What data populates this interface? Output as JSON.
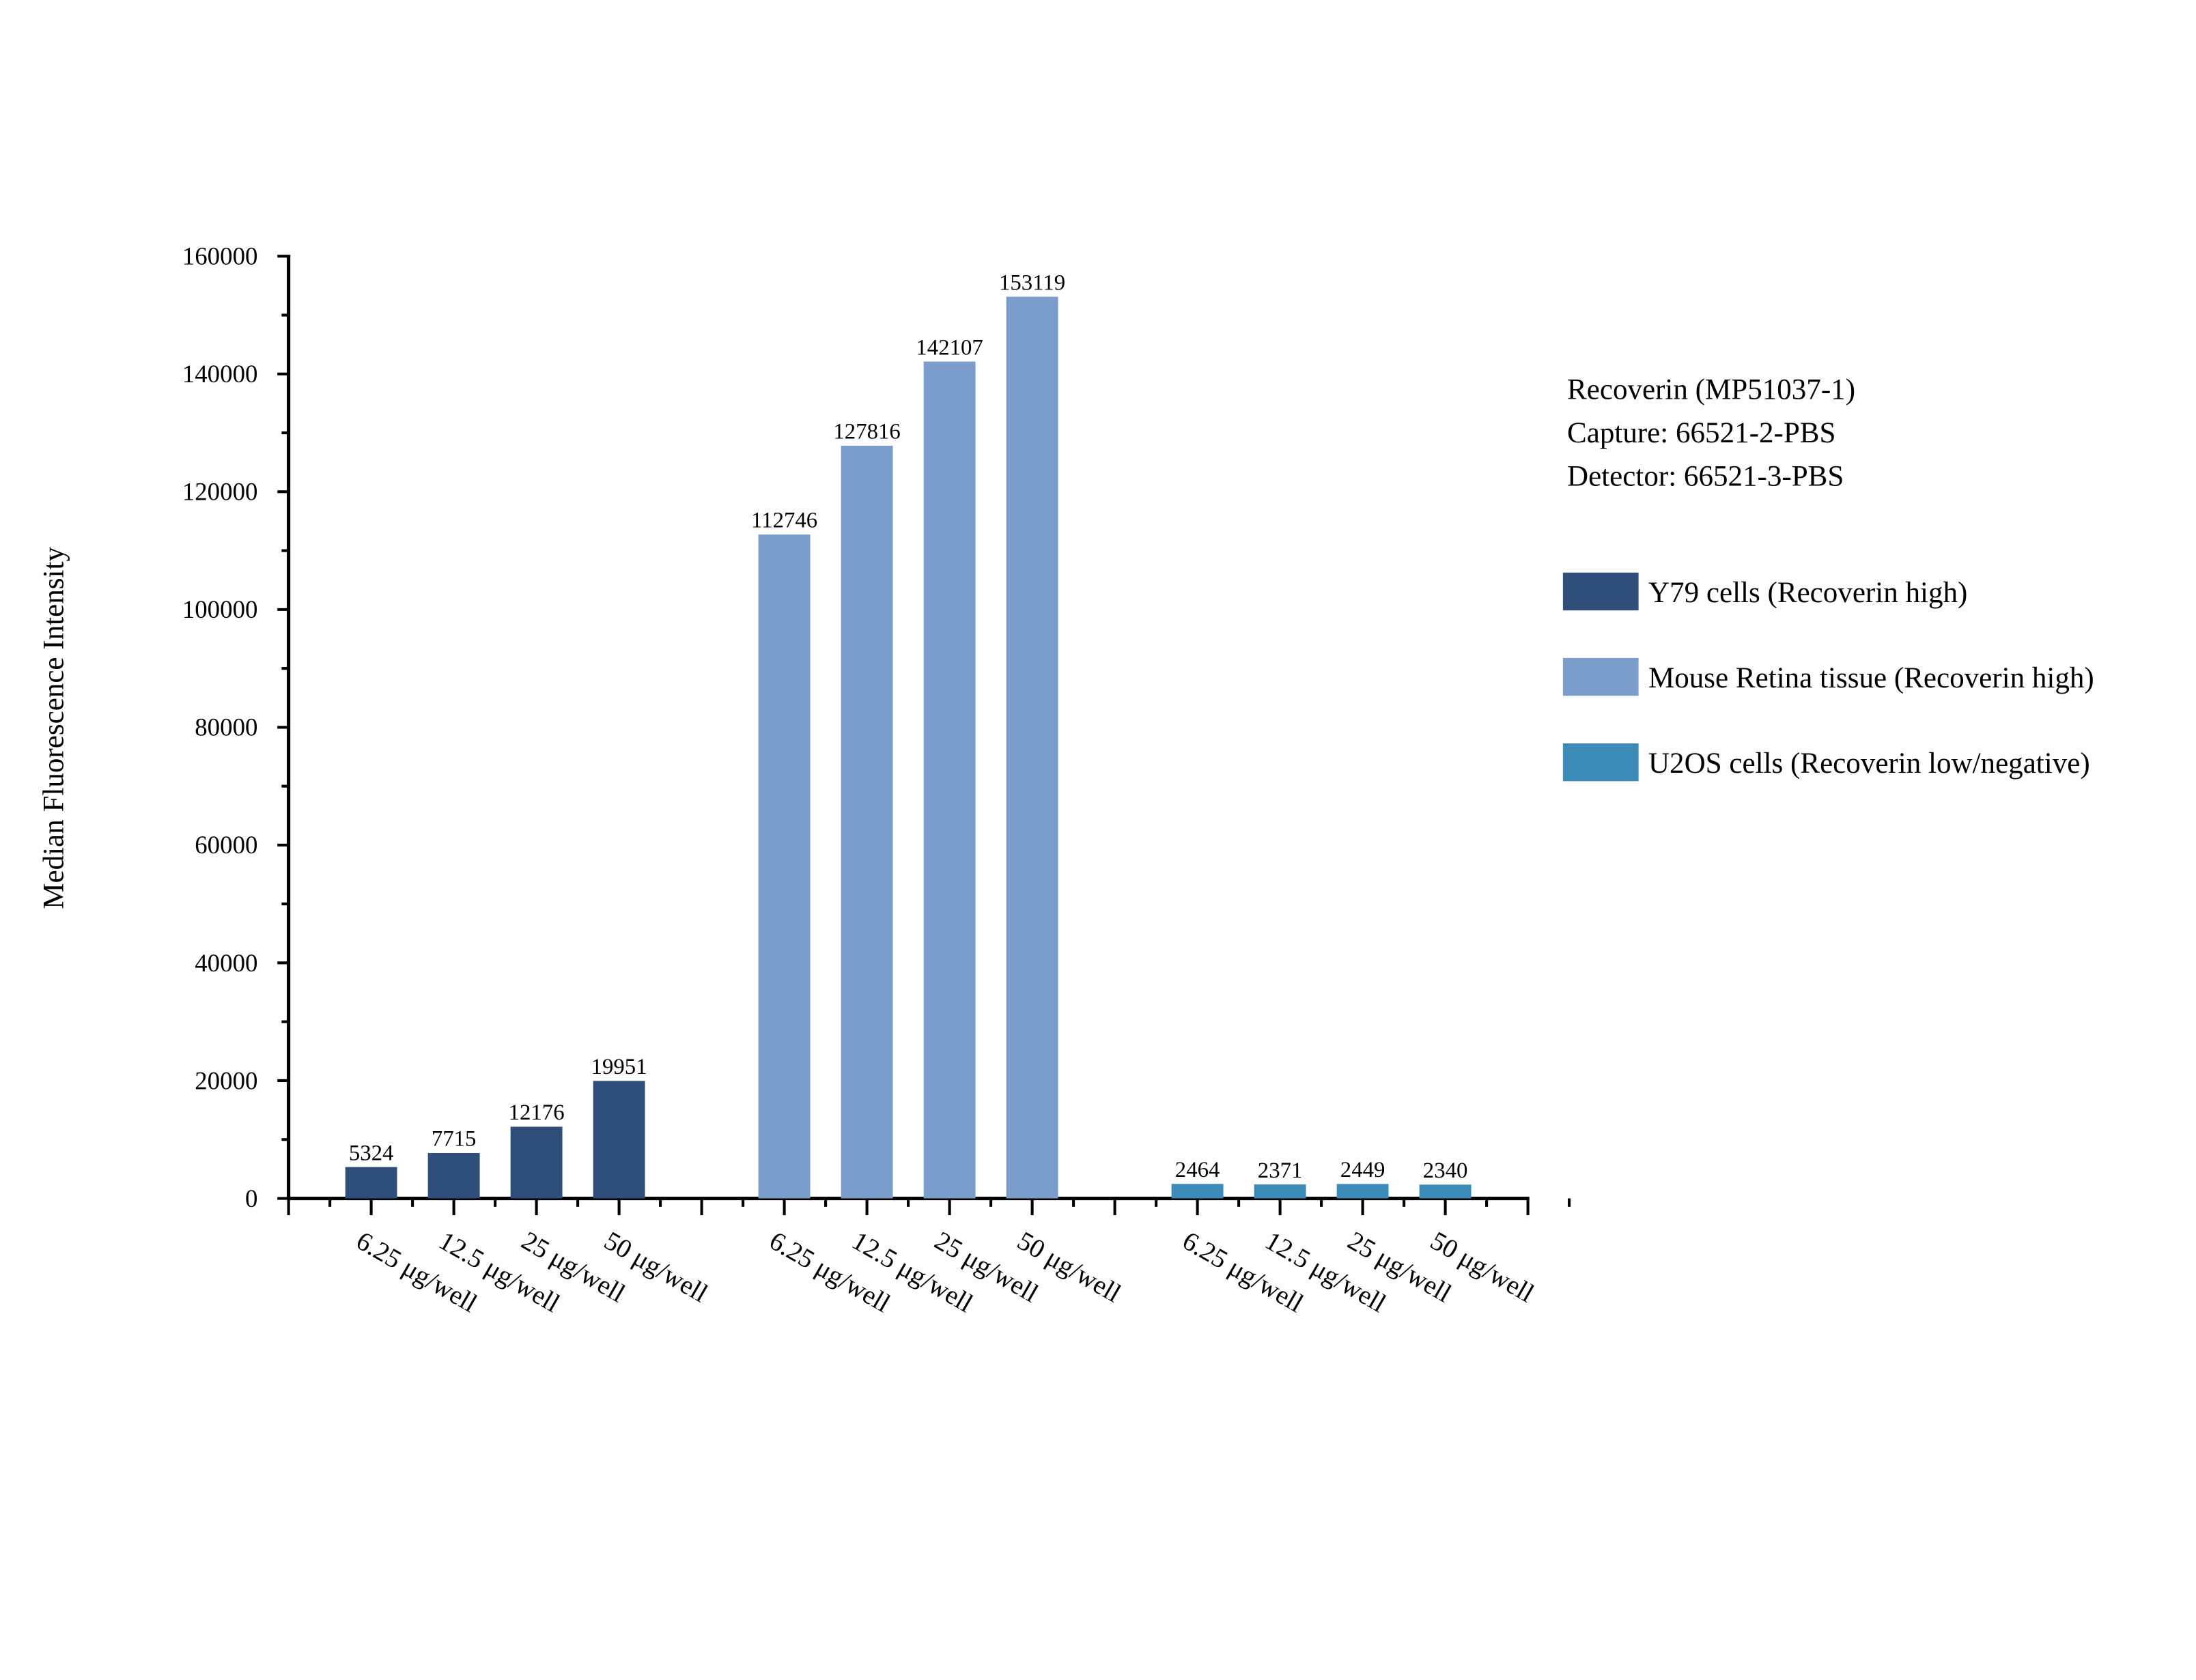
{
  "chart_data": {
    "type": "bar",
    "ylabel": "Median Fluorescence Intensity",
    "xlabel": "",
    "ylim": [
      0,
      160000
    ],
    "yticks": [
      "0",
      "20000",
      "40000",
      "60000",
      "80000",
      "100000",
      "120000",
      "140000",
      "160000"
    ],
    "grid": false,
    "legend_placement": "right",
    "annotation": [
      "Recoverin (MP51037-1)",
      "Capture: 66521-2-PBS",
      "Detector: 66521-3-PBS"
    ],
    "categories": [
      "6.25 μg/well",
      "12.5 μg/well",
      "25 μg/well",
      "50 μg/well"
    ],
    "series": [
      {
        "name": "Y79 cells (Recoverin high)",
        "color": "#2f4f7a",
        "values": [
          5324,
          7715,
          12176,
          19951
        ]
      },
      {
        "name": "Mouse Retina tissue (Recoverin high)",
        "color": "#7b9dcb",
        "values": [
          112746,
          127816,
          142107,
          153119
        ]
      },
      {
        "name": "U2OS cells (Recoverin low/negative)",
        "color": "#3c8ab8",
        "values": [
          2464,
          2371,
          2449,
          2340
        ]
      }
    ]
  }
}
